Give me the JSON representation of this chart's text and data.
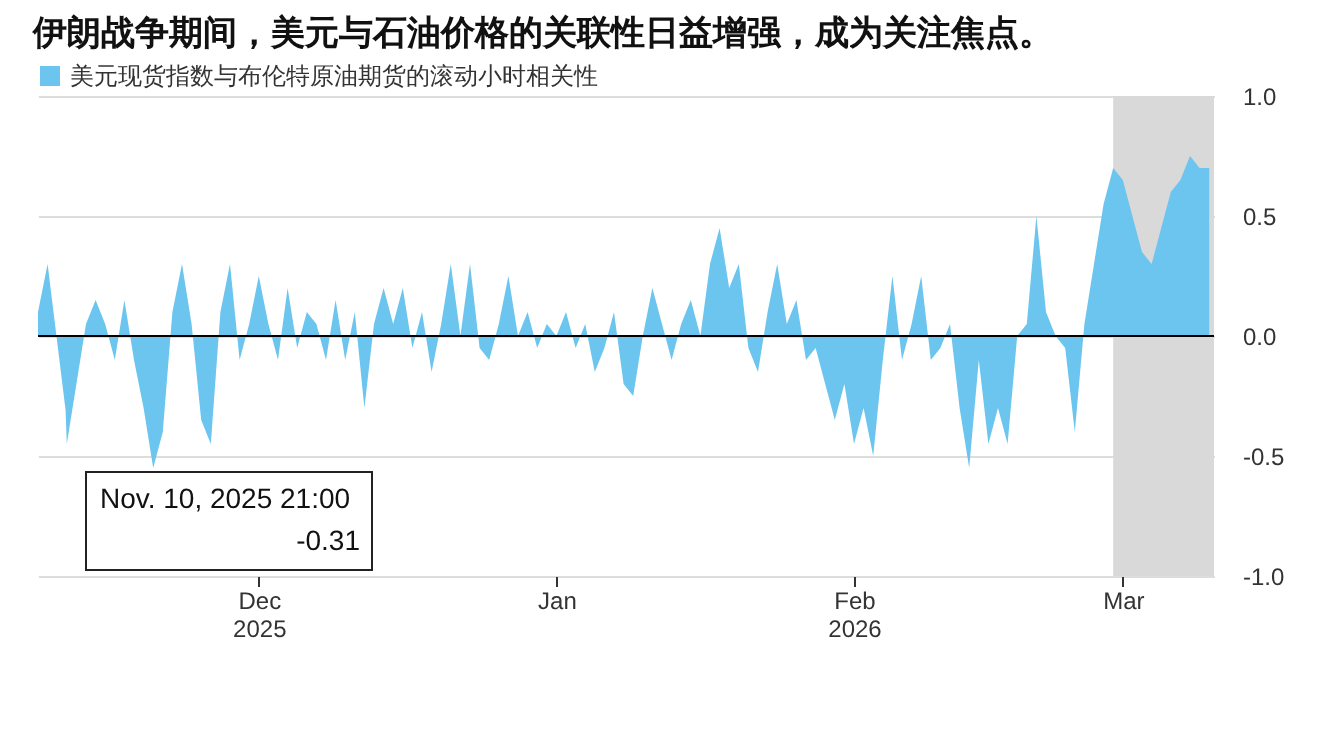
{
  "chart_data": {
    "type": "area",
    "title": "伊朗战争期间，美元与石油价格的关联性日益增强，成为关注焦点。",
    "x": [
      "2025-11-08",
      "2025-11-09",
      "2025-11-10T21:00",
      "2025-11-11",
      "2025-11-12",
      "2025-11-13",
      "2025-11-14",
      "2025-11-15",
      "2025-11-16",
      "2025-11-17",
      "2025-11-18",
      "2025-11-19",
      "2025-11-20",
      "2025-11-21",
      "2025-11-22",
      "2025-11-23",
      "2025-11-24",
      "2025-11-25",
      "2025-11-26",
      "2025-11-27",
      "2025-11-28",
      "2025-11-29",
      "2025-11-30",
      "2025-12-01",
      "2025-12-02",
      "2025-12-03",
      "2025-12-04",
      "2025-12-05",
      "2025-12-06",
      "2025-12-07",
      "2025-12-08",
      "2025-12-09",
      "2025-12-10",
      "2025-12-11",
      "2025-12-12",
      "2025-12-13",
      "2025-12-14",
      "2025-12-15",
      "2025-12-16",
      "2025-12-17",
      "2025-12-18",
      "2025-12-19",
      "2025-12-20",
      "2025-12-21",
      "2025-12-22",
      "2025-12-23",
      "2025-12-24",
      "2025-12-25",
      "2025-12-26",
      "2025-12-27",
      "2025-12-28",
      "2025-12-29",
      "2025-12-30",
      "2025-12-31",
      "2026-01-01",
      "2026-01-02",
      "2026-01-03",
      "2026-01-04",
      "2026-01-05",
      "2026-01-06",
      "2026-01-07",
      "2026-01-08",
      "2026-01-09",
      "2026-01-10",
      "2026-01-11",
      "2026-01-12",
      "2026-01-13",
      "2026-01-14",
      "2026-01-15",
      "2026-01-16",
      "2026-01-17",
      "2026-01-18",
      "2026-01-19",
      "2026-01-20",
      "2026-01-21",
      "2026-01-22",
      "2026-01-23",
      "2026-01-24",
      "2026-01-25",
      "2026-01-26",
      "2026-01-27",
      "2026-01-28",
      "2026-01-29",
      "2026-01-30",
      "2026-01-31",
      "2026-02-01",
      "2026-02-02",
      "2026-02-03",
      "2026-02-04",
      "2026-02-05",
      "2026-02-06",
      "2026-02-07",
      "2026-02-08",
      "2026-02-09",
      "2026-02-10",
      "2026-02-11",
      "2026-02-12",
      "2026-02-13",
      "2026-02-14",
      "2026-02-15",
      "2026-02-16",
      "2026-02-17",
      "2026-02-18",
      "2026-02-19",
      "2026-02-20",
      "2026-02-21",
      "2026-02-22",
      "2026-02-23",
      "2026-02-24",
      "2026-02-25",
      "2026-02-26",
      "2026-02-27",
      "2026-02-28",
      "2026-03-01",
      "2026-03-02",
      "2026-03-03",
      "2026-03-04",
      "2026-03-05",
      "2026-03-06",
      "2026-03-07",
      "2026-03-08",
      "2026-03-09",
      "2026-03-10"
    ],
    "series": [
      {
        "name": "美元现货指数与布伦特原油期货的滚动小时相关性",
        "color": "#6cc5ee",
        "values": [
          0.1,
          0.3,
          -0.31,
          -0.45,
          -0.2,
          0.05,
          0.15,
          0.05,
          -0.1,
          0.15,
          -0.1,
          -0.3,
          -0.55,
          -0.4,
          0.1,
          0.3,
          0.05,
          -0.35,
          -0.45,
          0.1,
          0.3,
          -0.1,
          0.05,
          0.25,
          0.05,
          -0.1,
          0.2,
          -0.05,
          0.1,
          0.05,
          -0.1,
          0.15,
          -0.1,
          0.1,
          -0.3,
          0.05,
          0.2,
          0.05,
          0.2,
          -0.05,
          0.1,
          -0.15,
          0.05,
          0.3,
          0.0,
          0.3,
          -0.05,
          -0.1,
          0.05,
          0.25,
          0.0,
          0.1,
          -0.05,
          0.05,
          0.0,
          0.1,
          -0.05,
          0.05,
          -0.15,
          -0.05,
          0.1,
          -0.2,
          -0.25,
          0.0,
          0.2,
          0.05,
          -0.1,
          0.05,
          0.15,
          0.0,
          0.3,
          0.45,
          0.2,
          0.3,
          -0.05,
          -0.15,
          0.1,
          0.3,
          0.05,
          0.15,
          -0.1,
          -0.05,
          -0.2,
          -0.35,
          -0.2,
          -0.45,
          -0.3,
          -0.5,
          -0.1,
          0.25,
          -0.1,
          0.05,
          0.25,
          -0.1,
          -0.05,
          0.05,
          -0.3,
          -0.55,
          -0.1,
          -0.45,
          -0.3,
          -0.45,
          0.0,
          0.05,
          0.5,
          0.1,
          0.0,
          -0.05,
          -0.4,
          0.05,
          0.3,
          0.55,
          0.7,
          0.65,
          0.5,
          0.35,
          0.3,
          0.45,
          0.6,
          0.65,
          0.75,
          0.7,
          0.7
        ]
      }
    ],
    "xlim": [
      "2025-11-08",
      "2026-03-10T12:00"
    ],
    "xticks": [
      {
        "value": "2025-12-01",
        "label": "Dec\n2025"
      },
      {
        "value": "2026-01-01",
        "label": "Jan"
      },
      {
        "value": "2026-02-01",
        "label": "Feb\n2026"
      },
      {
        "value": "2026-03-01",
        "label": "Mar"
      }
    ],
    "ylim": [
      -1,
      1
    ],
    "yticks": [
      {
        "value": 1,
        "label": "1.0"
      },
      {
        "value": 0.5,
        "label": "0.5"
      },
      {
        "value": 0,
        "label": "0.0"
      },
      {
        "value": -0.5,
        "label": "-0.5"
      },
      {
        "value": -1,
        "label": "-1.0"
      }
    ],
    "grid": "y",
    "legend": "top left",
    "bands": [
      {
        "axis": "x",
        "from": "2026-02-28",
        "to": "2026-03-10T12:00",
        "color": "#d9d9d9"
      }
    ],
    "ref_lines": [
      {
        "axis": "y",
        "value": 0,
        "color": "#000000"
      }
    ],
    "annotations": [
      "Nov. 10, 2025 21:00",
      "-0.31"
    ]
  }
}
